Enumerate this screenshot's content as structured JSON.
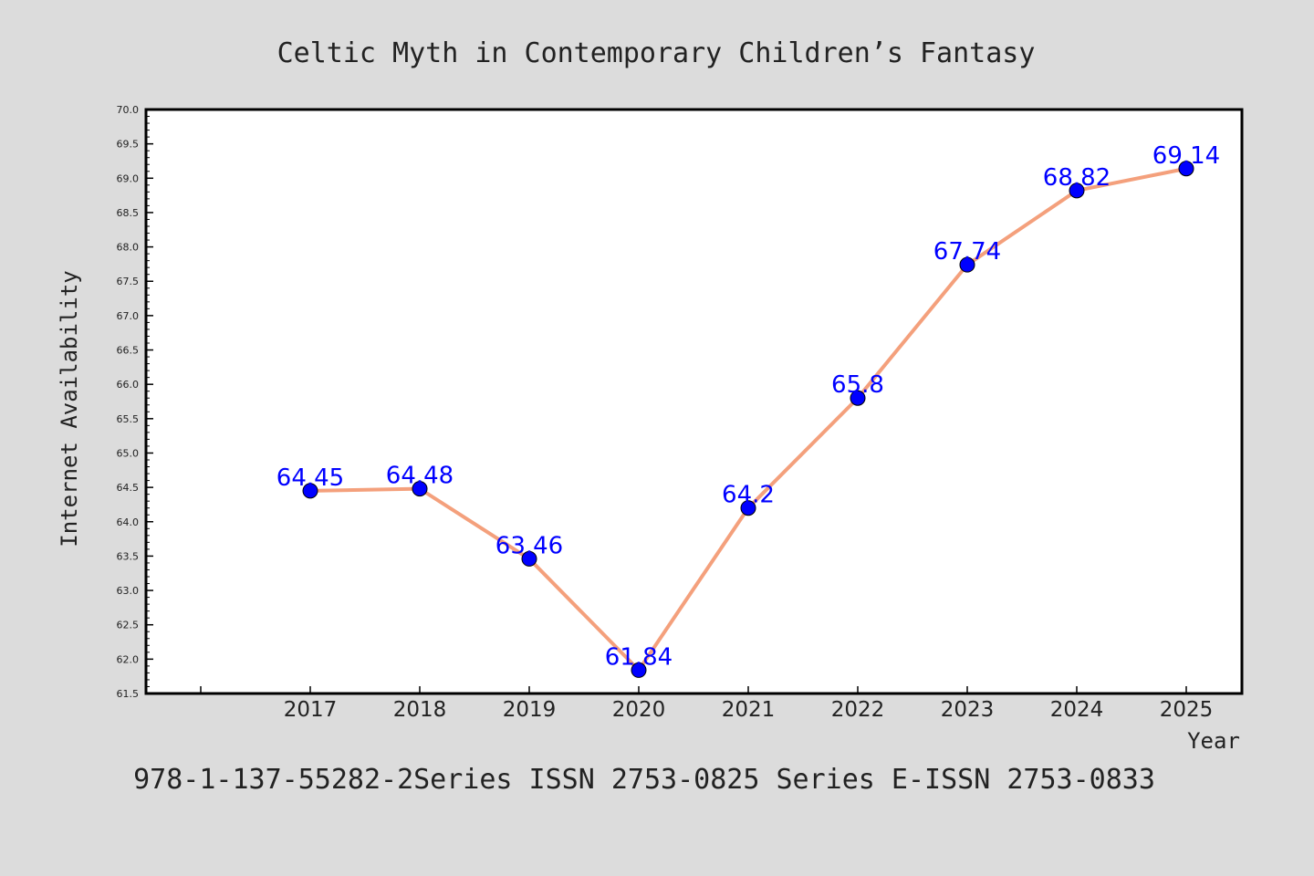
{
  "chart_data": {
    "type": "line",
    "title": "Celtic Myth in Contemporary Children’s Fantasy",
    "xlabel": "Year",
    "ylabel": "Internet Availability",
    "footer": "978-1-137-55282-2Series ISSN 2753-0825 Series E-ISSN 2753-0833",
    "x": [
      "2017",
      "2018",
      "2019",
      "2020",
      "2021",
      "2022",
      "2023",
      "2024",
      "2025"
    ],
    "values": [
      64.45,
      64.48,
      63.46,
      61.84,
      64.2,
      65.8,
      67.74,
      68.82,
      69.14
    ],
    "data_labels": [
      "64.45",
      "64.48",
      "63.46",
      "61.84",
      "64.2",
      "65.8",
      "67.74",
      "68.82",
      "69.14"
    ],
    "ylim": [
      61.5,
      70.0
    ],
    "yticks": [
      "61.5",
      "62.0",
      "62.5",
      "63.0",
      "63.5",
      "64.0",
      "64.5",
      "65.0",
      "65.5",
      "66.0",
      "66.5",
      "67.0",
      "67.5",
      "68.0",
      "68.5",
      "69.0",
      "69.5",
      "70.0"
    ],
    "x_slots": 10,
    "grid": false,
    "line_color": "#f4a07c",
    "marker_color": "#0000ff",
    "label_color": "#0000ff",
    "background": "#dcdcdc",
    "plot_background": "#ffffff"
  }
}
